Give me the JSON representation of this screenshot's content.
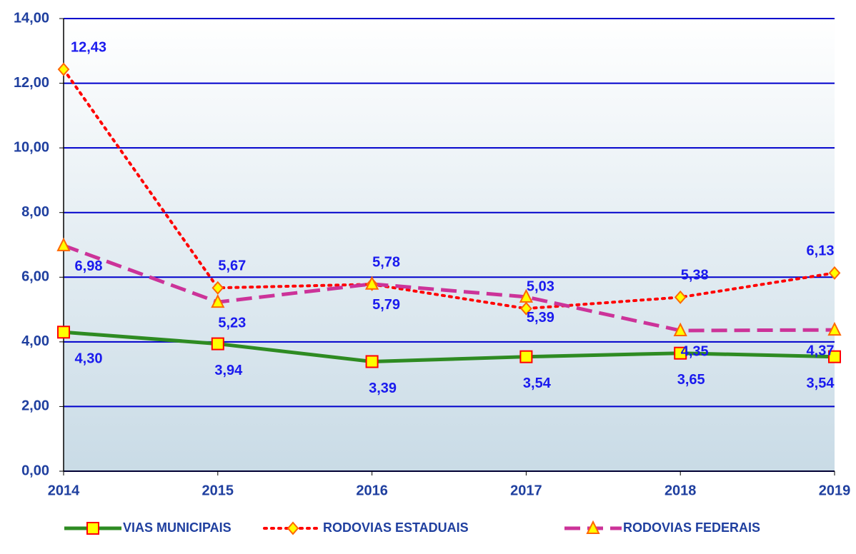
{
  "chart_data": {
    "type": "line",
    "categories": [
      "2014",
      "2015",
      "2016",
      "2017",
      "2018",
      "2019"
    ],
    "ylim": [
      0,
      14
    ],
    "yticks": [
      {
        "value": 0,
        "label": "0,00"
      },
      {
        "value": 2,
        "label": "2,00"
      },
      {
        "value": 4,
        "label": "4,00"
      },
      {
        "value": 6,
        "label": "6,00"
      },
      {
        "value": 8,
        "label": "8,00"
      },
      {
        "value": 10,
        "label": "10,00"
      },
      {
        "value": 12,
        "label": "12,00"
      },
      {
        "value": 14,
        "label": "14,00"
      }
    ],
    "grid": true,
    "legend": "bottom",
    "series": [
      {
        "name": "VIAS MUNICIPAIS",
        "color": "#2e8b22",
        "marker": "square",
        "line_style": "solid",
        "values": [
          4.3,
          3.94,
          3.39,
          3.54,
          3.65,
          3.54
        ],
        "value_labels": [
          "4,30",
          "3,94",
          "3,39",
          "3,54",
          "3,65",
          "3,54"
        ]
      },
      {
        "name": "RODOVIAS ESTADUAIS",
        "color": "#ff0000",
        "marker": "diamond",
        "line_style": "dotted",
        "values": [
          12.43,
          5.67,
          5.78,
          5.03,
          5.38,
          6.13
        ],
        "value_labels": [
          "12,43",
          "5,67",
          "5,78",
          "5,03",
          "5,38",
          "6,13"
        ]
      },
      {
        "name": "RODOVIAS FEDERAIS",
        "color": "#cc3399",
        "marker": "triangle",
        "line_style": "dashed",
        "values": [
          6.98,
          5.23,
          5.79,
          5.39,
          4.35,
          4.37
        ],
        "value_labels": [
          "6,98",
          "5,23",
          "5,79",
          "5,39",
          "4,35",
          "4,37"
        ]
      }
    ]
  }
}
